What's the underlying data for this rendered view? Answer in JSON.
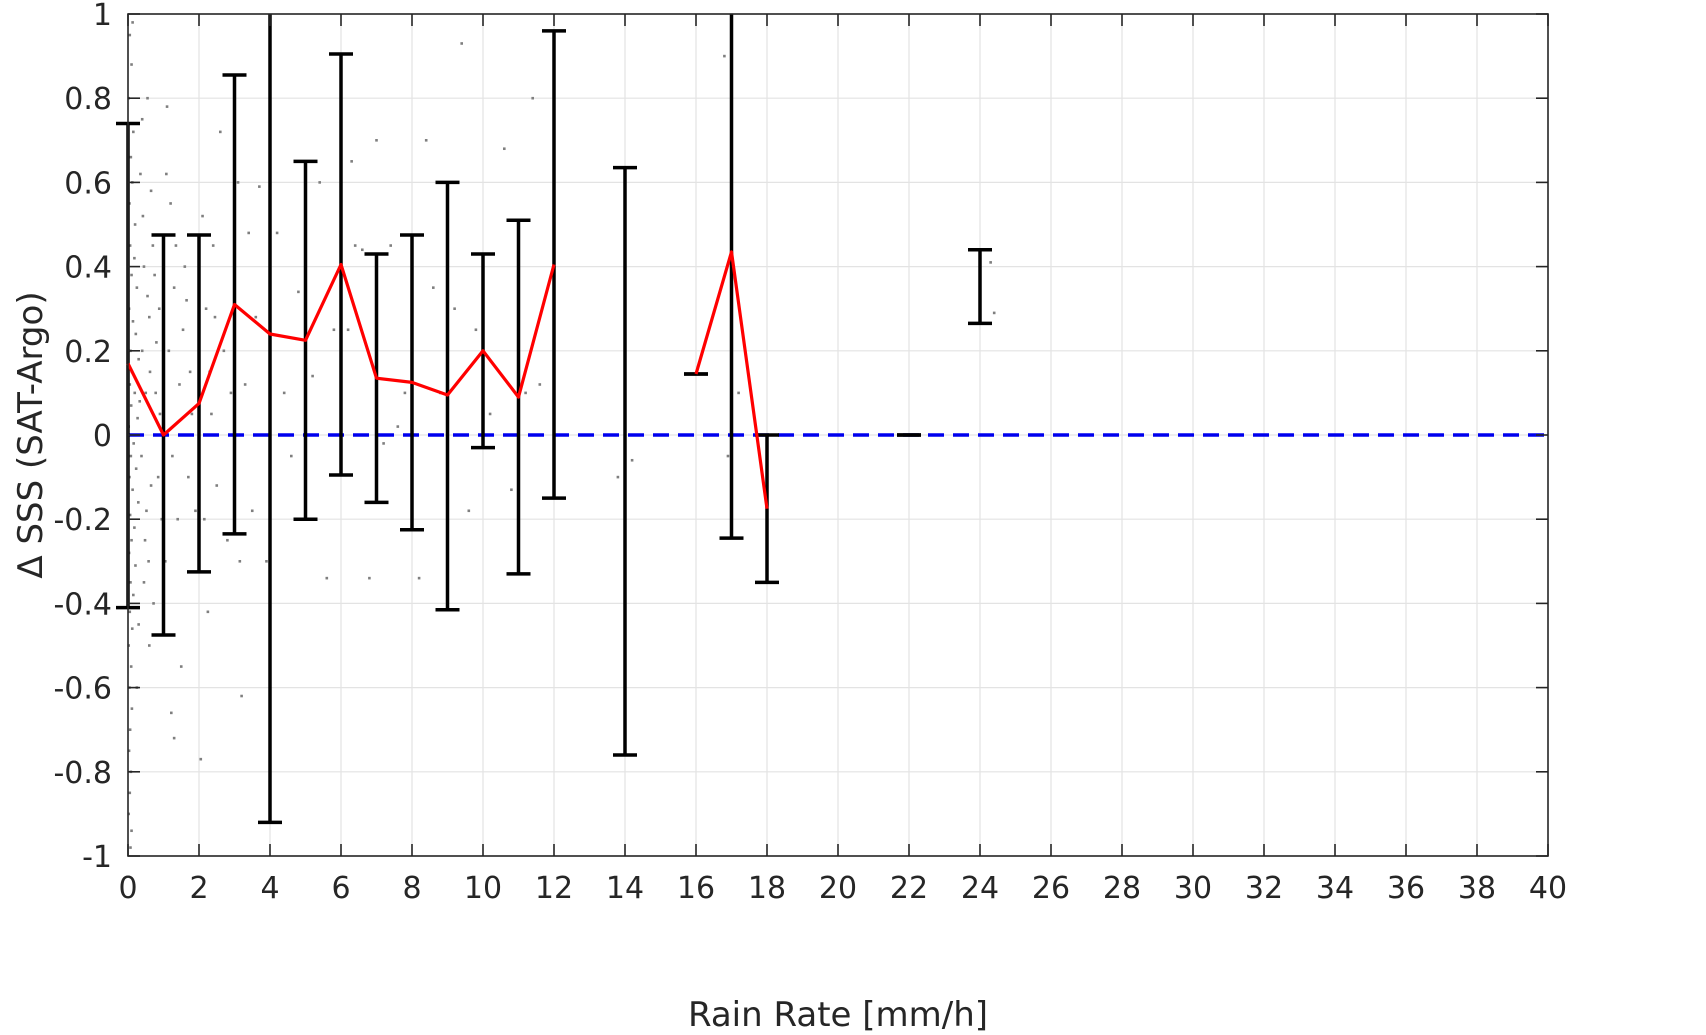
{
  "chart_data": {
    "type": "scatter",
    "title": "",
    "xlabel": "Rain Rate [mm/h]",
    "ylabel": "Δ SSS (SAT-Argo)",
    "xlim": [
      0,
      40
    ],
    "ylim": [
      -1,
      1
    ],
    "grid": true,
    "x_ticks": [
      "0",
      "2",
      "4",
      "6",
      "8",
      "10",
      "12",
      "14",
      "16",
      "18",
      "20",
      "22",
      "24",
      "26",
      "28",
      "30",
      "32",
      "34",
      "36",
      "38",
      "40"
    ],
    "y_ticks": [
      "-1",
      "-0.8",
      "-0.6",
      "-0.4",
      "-0.2",
      "0",
      "0.2",
      "0.4",
      "0.6",
      "0.8",
      "1"
    ],
    "colors": {
      "scatter": "#7f7f7f",
      "error_bars": "#000000",
      "mean_line": "#ff0000",
      "zero_line": "#0000ee"
    },
    "error_bars": [
      {
        "x": 0,
        "mean": 0.17,
        "low": -0.41,
        "high": 0.74
      },
      {
        "x": 1,
        "mean": 0.0,
        "low": -0.475,
        "high": 0.475
      },
      {
        "x": 2,
        "mean": 0.075,
        "low": -0.325,
        "high": 0.475
      },
      {
        "x": 3,
        "mean": 0.31,
        "low": -0.235,
        "high": 0.855
      },
      {
        "x": 4,
        "mean": 0.24,
        "low": -0.92,
        "high": 1.0
      },
      {
        "x": 5,
        "mean": 0.225,
        "low": -0.2,
        "high": 0.65
      },
      {
        "x": 6,
        "mean": 0.405,
        "low": -0.095,
        "high": 0.905
      },
      {
        "x": 7,
        "mean": 0.135,
        "low": -0.16,
        "high": 0.43
      },
      {
        "x": 8,
        "mean": 0.125,
        "low": -0.225,
        "high": 0.475
      },
      {
        "x": 9,
        "mean": 0.095,
        "low": -0.415,
        "high": 0.6
      },
      {
        "x": 10,
        "mean": 0.2,
        "low": -0.03,
        "high": 0.43
      },
      {
        "x": 11,
        "mean": 0.09,
        "low": -0.33,
        "high": 0.51
      },
      {
        "x": 12,
        "mean": 0.405,
        "low": -0.15,
        "high": 0.96
      },
      {
        "x": 14,
        "mean": null,
        "low": -0.76,
        "high": 0.635
      },
      {
        "x": 16,
        "mean": 0.145,
        "low": 0.145,
        "high": 0.145
      },
      {
        "x": 17,
        "mean": 0.435,
        "low": -0.245,
        "high": 1.0
      },
      {
        "x": 18,
        "mean": -0.175,
        "low": -0.35,
        "high": 0.0
      },
      {
        "x": 22,
        "mean": 0.0,
        "low": 0.0,
        "high": 0.0
      },
      {
        "x": 24,
        "mean": null,
        "low": 0.265,
        "high": 0.44
      }
    ],
    "mean_line_segments": [
      [
        [
          0,
          0.17
        ],
        [
          1,
          0.0
        ],
        [
          2,
          0.075
        ],
        [
          3,
          0.31
        ],
        [
          4,
          0.24
        ],
        [
          5,
          0.225
        ],
        [
          6,
          0.405
        ],
        [
          7,
          0.135
        ],
        [
          8,
          0.125
        ],
        [
          9,
          0.095
        ],
        [
          10,
          0.2
        ],
        [
          11,
          0.09
        ],
        [
          12,
          0.405
        ]
      ],
      [
        [
          16,
          0.145
        ],
        [
          17,
          0.435
        ],
        [
          18,
          -0.175
        ]
      ]
    ],
    "reference_line": {
      "y": 0,
      "x_range": [
        0,
        40
      ]
    },
    "scatter_points": [
      [
        0.05,
        0.95
      ],
      [
        0.1,
        0.88
      ],
      [
        0.02,
        0.8
      ],
      [
        0.15,
        0.72
      ],
      [
        0.08,
        0.66
      ],
      [
        0.12,
        0.6
      ],
      [
        0.04,
        0.55
      ],
      [
        0.2,
        0.5
      ],
      [
        0.06,
        0.45
      ],
      [
        0.18,
        0.42
      ],
      [
        0.1,
        0.38
      ],
      [
        0.25,
        0.35
      ],
      [
        0.03,
        0.3
      ],
      [
        0.14,
        0.27
      ],
      [
        0.22,
        0.24
      ],
      [
        0.07,
        0.2
      ],
      [
        0.3,
        0.18
      ],
      [
        0.11,
        0.15
      ],
      [
        0.05,
        0.12
      ],
      [
        0.19,
        0.1
      ],
      [
        0.09,
        0.07
      ],
      [
        0.27,
        0.04
      ],
      [
        0.02,
        0.02
      ],
      [
        0.16,
        -0.02
      ],
      [
        0.08,
        -0.05
      ],
      [
        0.23,
        -0.08
      ],
      [
        0.04,
        -0.1
      ],
      [
        0.13,
        -0.13
      ],
      [
        0.29,
        -0.16
      ],
      [
        0.06,
        -0.19
      ],
      [
        0.18,
        -0.22
      ],
      [
        0.1,
        -0.25
      ],
      [
        0.03,
        -0.28
      ],
      [
        0.21,
        -0.31
      ],
      [
        0.07,
        -0.35
      ],
      [
        0.15,
        -0.38
      ],
      [
        0.05,
        -0.42
      ],
      [
        0.12,
        -0.46
      ],
      [
        0.02,
        -0.5
      ],
      [
        0.09,
        -0.55
      ],
      [
        0.04,
        -0.6
      ],
      [
        0.11,
        -0.65
      ],
      [
        0.06,
        -0.7
      ],
      [
        0.03,
        -0.75
      ],
      [
        0.08,
        -0.8
      ],
      [
        0.05,
        -0.85
      ],
      [
        0.02,
        -0.9
      ],
      [
        0.1,
        -0.94
      ],
      [
        0.07,
        -0.98
      ],
      [
        0.13,
        0.98
      ],
      [
        0.35,
        0.62
      ],
      [
        0.45,
        0.4
      ],
      [
        0.55,
        0.33
      ],
      [
        0.4,
        0.2
      ],
      [
        0.6,
        0.28
      ],
      [
        0.5,
        0.1
      ],
      [
        0.38,
        -0.05
      ],
      [
        0.65,
        -0.12
      ],
      [
        0.48,
        -0.25
      ],
      [
        0.58,
        -0.3
      ],
      [
        0.42,
        0.52
      ],
      [
        0.7,
        0.45
      ],
      [
        0.33,
        0.08
      ],
      [
        0.52,
        -0.18
      ],
      [
        0.62,
        0.15
      ],
      [
        0.75,
        0.38
      ],
      [
        0.8,
        0.22
      ],
      [
        0.85,
        -0.1
      ],
      [
        0.9,
        0.05
      ],
      [
        0.72,
        -0.4
      ],
      [
        0.4,
        0.75
      ],
      [
        0.55,
        0.8
      ],
      [
        0.25,
        -0.6
      ],
      [
        0.3,
        -0.45
      ],
      [
        0.45,
        -0.35
      ],
      [
        0.65,
        0.58
      ],
      [
        0.78,
        0.1
      ],
      [
        0.88,
        0.3
      ],
      [
        0.95,
        -0.2
      ],
      [
        0.6,
        -0.5
      ],
      [
        1.1,
        0.78
      ],
      [
        1.2,
        0.55
      ],
      [
        1.3,
        0.35
      ],
      [
        1.15,
        0.2
      ],
      [
        1.25,
        -0.05
      ],
      [
        1.4,
        -0.2
      ],
      [
        1.05,
        -0.3
      ],
      [
        1.35,
        0.45
      ],
      [
        1.45,
        0.12
      ],
      [
        1.5,
        -0.55
      ],
      [
        1.22,
        -0.66
      ],
      [
        1.6,
        0.4
      ],
      [
        1.55,
        0.25
      ],
      [
        1.7,
        -0.1
      ],
      [
        1.65,
        0.32
      ],
      [
        1.8,
        0.05
      ],
      [
        1.9,
        -0.18
      ],
      [
        1.08,
        0.62
      ],
      [
        1.3,
        -0.72
      ],
      [
        1.75,
        0.15
      ],
      [
        2.1,
        0.52
      ],
      [
        2.2,
        0.3
      ],
      [
        2.3,
        0.15
      ],
      [
        2.15,
        -0.2
      ],
      [
        2.4,
        0.45
      ],
      [
        2.25,
        -0.42
      ],
      [
        2.35,
        0.05
      ],
      [
        2.5,
        -0.12
      ],
      [
        2.05,
        -0.77
      ],
      [
        2.45,
        0.28
      ],
      [
        2.6,
        0.72
      ],
      [
        2.7,
        0.2
      ],
      [
        2.8,
        -0.25
      ],
      [
        2.9,
        0.1
      ],
      [
        3.1,
        0.6
      ],
      [
        3.2,
        -0.62
      ],
      [
        3.3,
        0.12
      ],
      [
        3.15,
        -0.3
      ],
      [
        3.4,
        0.48
      ],
      [
        3.5,
        -0.18
      ],
      [
        3.6,
        0.28
      ],
      [
        3.7,
        0.59
      ],
      [
        3.8,
        0.0
      ],
      [
        3.9,
        -0.3
      ],
      [
        4.2,
        0.48
      ],
      [
        4.4,
        0.1
      ],
      [
        4.6,
        -0.05
      ],
      [
        4.8,
        0.34
      ],
      [
        5.2,
        0.14
      ],
      [
        5.4,
        0.6
      ],
      [
        5.6,
        -0.34
      ],
      [
        5.8,
        0.25
      ],
      [
        6.2,
        0.25
      ],
      [
        6.3,
        0.65
      ],
      [
        6.4,
        0.45
      ],
      [
        6.6,
        0.44
      ],
      [
        6.8,
        -0.34
      ],
      [
        7.0,
        0.7
      ],
      [
        7.2,
        -0.02
      ],
      [
        7.4,
        0.45
      ],
      [
        7.6,
        0.02
      ],
      [
        7.8,
        0.1
      ],
      [
        8.0,
        0.44
      ],
      [
        8.2,
        -0.34
      ],
      [
        8.4,
        0.7
      ],
      [
        8.6,
        0.35
      ],
      [
        8.8,
        0.1
      ],
      [
        9.2,
        0.3
      ],
      [
        9.4,
        0.93
      ],
      [
        9.6,
        -0.18
      ],
      [
        9.8,
        0.25
      ],
      [
        10.0,
        0.42
      ],
      [
        10.2,
        0.05
      ],
      [
        10.6,
        0.68
      ],
      [
        10.8,
        -0.13
      ],
      [
        11.4,
        0.8
      ],
      [
        11.6,
        0.12
      ],
      [
        11.2,
        0.1
      ],
      [
        13.8,
        -0.1
      ],
      [
        14.2,
        -0.06
      ],
      [
        16.8,
        0.9
      ],
      [
        16.9,
        -0.05
      ],
      [
        17.2,
        0.1
      ],
      [
        24.3,
        0.41
      ],
      [
        24.4,
        0.29
      ],
      [
        18.2,
        0.0
      ]
    ]
  }
}
